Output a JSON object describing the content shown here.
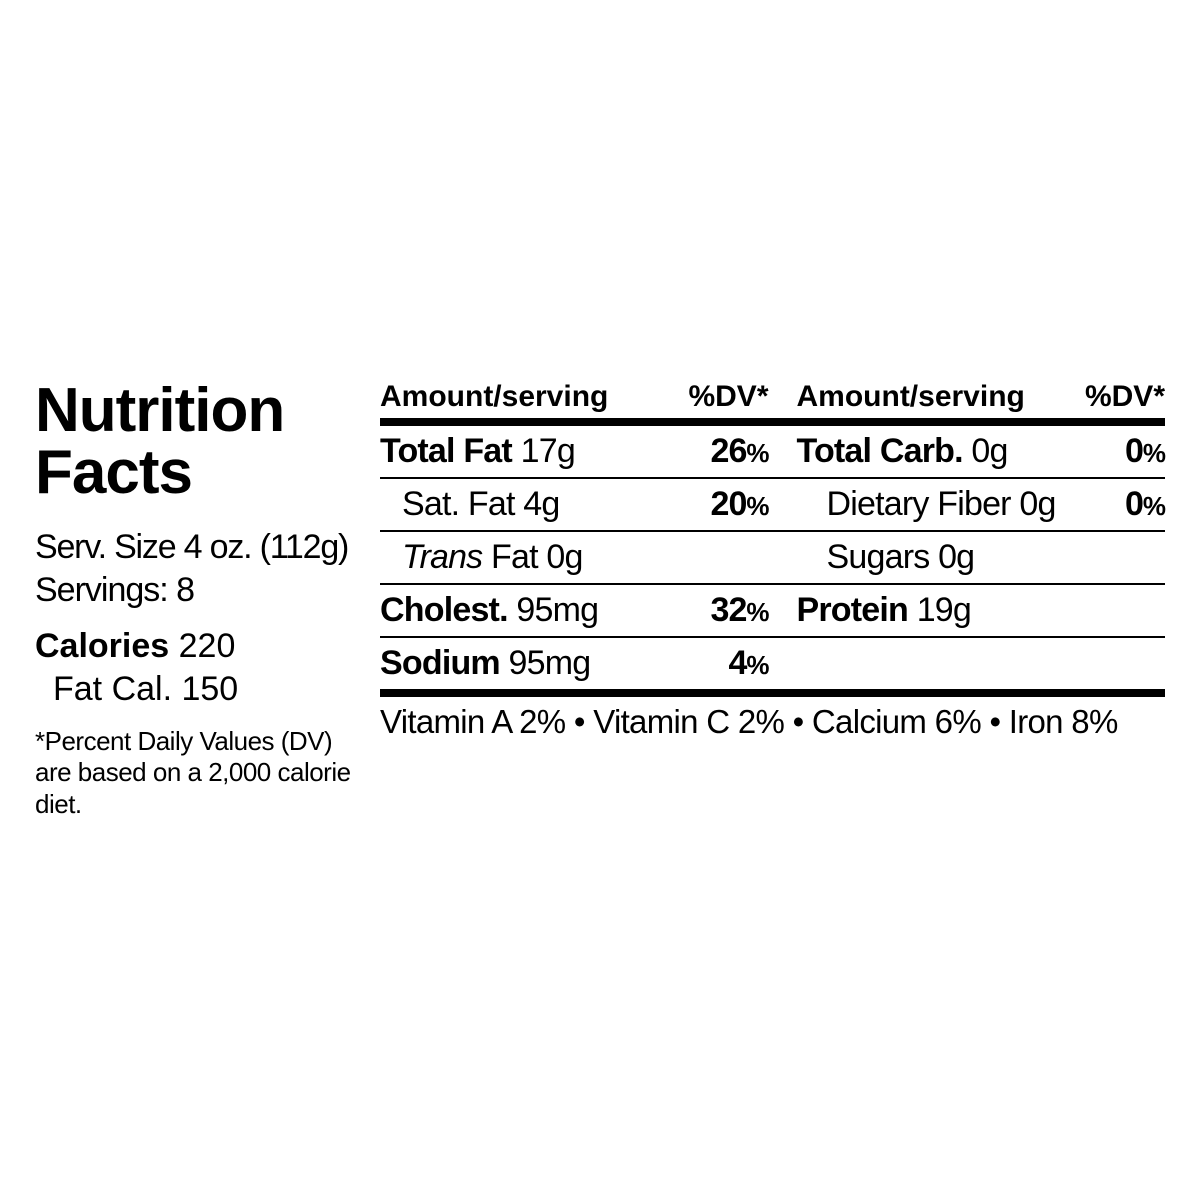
{
  "title_line1": "Nutrition",
  "title_line2": "Facts",
  "serving_size": "Serv. Size 4 oz. (112g)",
  "servings": "Servings: 8",
  "calories_label": "Calories",
  "calories_value": "220",
  "fat_cal": "Fat Cal. 150",
  "footnote": "*Percent Daily Values (DV) are based on a 2,000 calorie diet.",
  "hdr_amount": "Amount/serving",
  "hdr_dv": "%DV*",
  "rows": {
    "r1": {
      "n1_bold": "Total Fat",
      "n1_val": "17g",
      "d1": "26",
      "d1pct": "%",
      "n2_bold": "Total Carb.",
      "n2_val": "0g",
      "d2": "0",
      "d2pct": "%"
    },
    "r2": {
      "n1": "Sat. Fat 4g",
      "d1": "20",
      "d1pct": "%",
      "n2": "Dietary Fiber 0g",
      "d2": "0",
      "d2pct": "%"
    },
    "r3": {
      "n1_pre": "Trans",
      "n1_post": " Fat 0g",
      "d1": "",
      "n2": "Sugars 0g",
      "d2": ""
    },
    "r4": {
      "n1_bold": "Cholest.",
      "n1_val": "95mg",
      "d1": "32",
      "d1pct": "%",
      "n2_bold": "Protein",
      "n2_val": "19g",
      "d2": ""
    },
    "r5": {
      "n1_bold": "Sodium",
      "n1_val": "95mg",
      "d1": "4",
      "d1pct": "%",
      "n2": "",
      "d2": ""
    }
  },
  "vitamins": "Vitamin A 2% • Vitamin C 2% • Calcium 6% • Iron 8%"
}
